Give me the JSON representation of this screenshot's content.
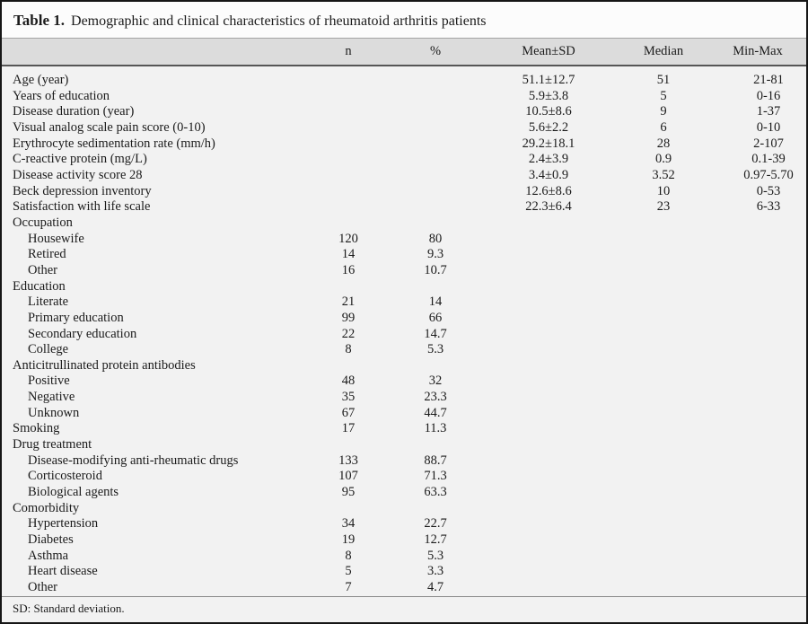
{
  "table": {
    "title_prefix": "Table 1.",
    "title": "Demographic and clinical characteristics of rheumatoid arthritis patients",
    "columns": [
      "",
      "n",
      "%",
      "Mean±SD",
      "Median",
      "Min-Max"
    ],
    "rows": [
      {
        "label": "Age (year)",
        "indent": 0,
        "mean_sd": "51.1±12.7",
        "median": "51",
        "min_max": "21-81"
      },
      {
        "label": "Years of education",
        "indent": 0,
        "mean_sd": "5.9±3.8",
        "median": "5",
        "min_max": "0-16"
      },
      {
        "label": "Disease duration (year)",
        "indent": 0,
        "mean_sd": "10.5±8.6",
        "median": "9",
        "min_max": "1-37"
      },
      {
        "label": "Visual analog scale pain score (0-10)",
        "indent": 0,
        "mean_sd": "5.6±2.2",
        "median": "6",
        "min_max": "0-10"
      },
      {
        "label": "Erythrocyte sedimentation rate (mm/h)",
        "indent": 0,
        "mean_sd": "29.2±18.1",
        "median": "28",
        "min_max": "2-107"
      },
      {
        "label": "C-reactive protein (mg/L)",
        "indent": 0,
        "mean_sd": "2.4±3.9",
        "median": "0.9",
        "min_max": "0.1-39"
      },
      {
        "label": "Disease activity score 28",
        "indent": 0,
        "mean_sd": "3.4±0.9",
        "median": "3.52",
        "min_max": "0.97-5.70"
      },
      {
        "label": "Beck depression inventory",
        "indent": 0,
        "mean_sd": "12.6±8.6",
        "median": "10",
        "min_max": "0-53"
      },
      {
        "label": "Satisfaction with life scale",
        "indent": 0,
        "mean_sd": "22.3±6.4",
        "median": "23",
        "min_max": "6-33"
      },
      {
        "label": "Occupation",
        "indent": 0,
        "section": true
      },
      {
        "label": "Housewife",
        "indent": 1,
        "n": "120",
        "pct": "80"
      },
      {
        "label": "Retired",
        "indent": 1,
        "n": "14",
        "pct": "9.3"
      },
      {
        "label": "Other",
        "indent": 1,
        "n": "16",
        "pct": "10.7"
      },
      {
        "label": "Education",
        "indent": 0,
        "section": true
      },
      {
        "label": "Literate",
        "indent": 1,
        "n": "21",
        "pct": "14"
      },
      {
        "label": "Primary education",
        "indent": 1,
        "n": "99",
        "pct": "66"
      },
      {
        "label": "Secondary education",
        "indent": 1,
        "n": "22",
        "pct": "14.7"
      },
      {
        "label": "College",
        "indent": 1,
        "n": "8",
        "pct": "5.3"
      },
      {
        "label": "Anticitrullinated protein antibodies",
        "indent": 0,
        "section": true
      },
      {
        "label": "Positive",
        "indent": 1,
        "n": "48",
        "pct": "32"
      },
      {
        "label": "Negative",
        "indent": 1,
        "n": "35",
        "pct": "23.3"
      },
      {
        "label": "Unknown",
        "indent": 1,
        "n": "67",
        "pct": "44.7"
      },
      {
        "label": "Smoking",
        "indent": 0,
        "n": "17",
        "pct": "11.3"
      },
      {
        "label": "Drug treatment",
        "indent": 0,
        "section": true
      },
      {
        "label": "Disease-modifying anti-rheumatic drugs",
        "indent": 1,
        "n": "133",
        "pct": "88.7"
      },
      {
        "label": "Corticosteroid",
        "indent": 1,
        "n": "107",
        "pct": "71.3"
      },
      {
        "label": "Biological agents",
        "indent": 1,
        "n": "95",
        "pct": "63.3"
      },
      {
        "label": "Comorbidity",
        "indent": 0,
        "section": true
      },
      {
        "label": "Hypertension",
        "indent": 1,
        "n": "34",
        "pct": "22.7"
      },
      {
        "label": "Diabetes",
        "indent": 1,
        "n": "19",
        "pct": "12.7"
      },
      {
        "label": "Asthma",
        "indent": 1,
        "n": "8",
        "pct": "5.3"
      },
      {
        "label": "Heart disease",
        "indent": 1,
        "n": "5",
        "pct": "3.3"
      },
      {
        "label": "Other",
        "indent": 1,
        "n": "7",
        "pct": "4.7"
      }
    ],
    "footnote": "SD: Standard deviation."
  }
}
